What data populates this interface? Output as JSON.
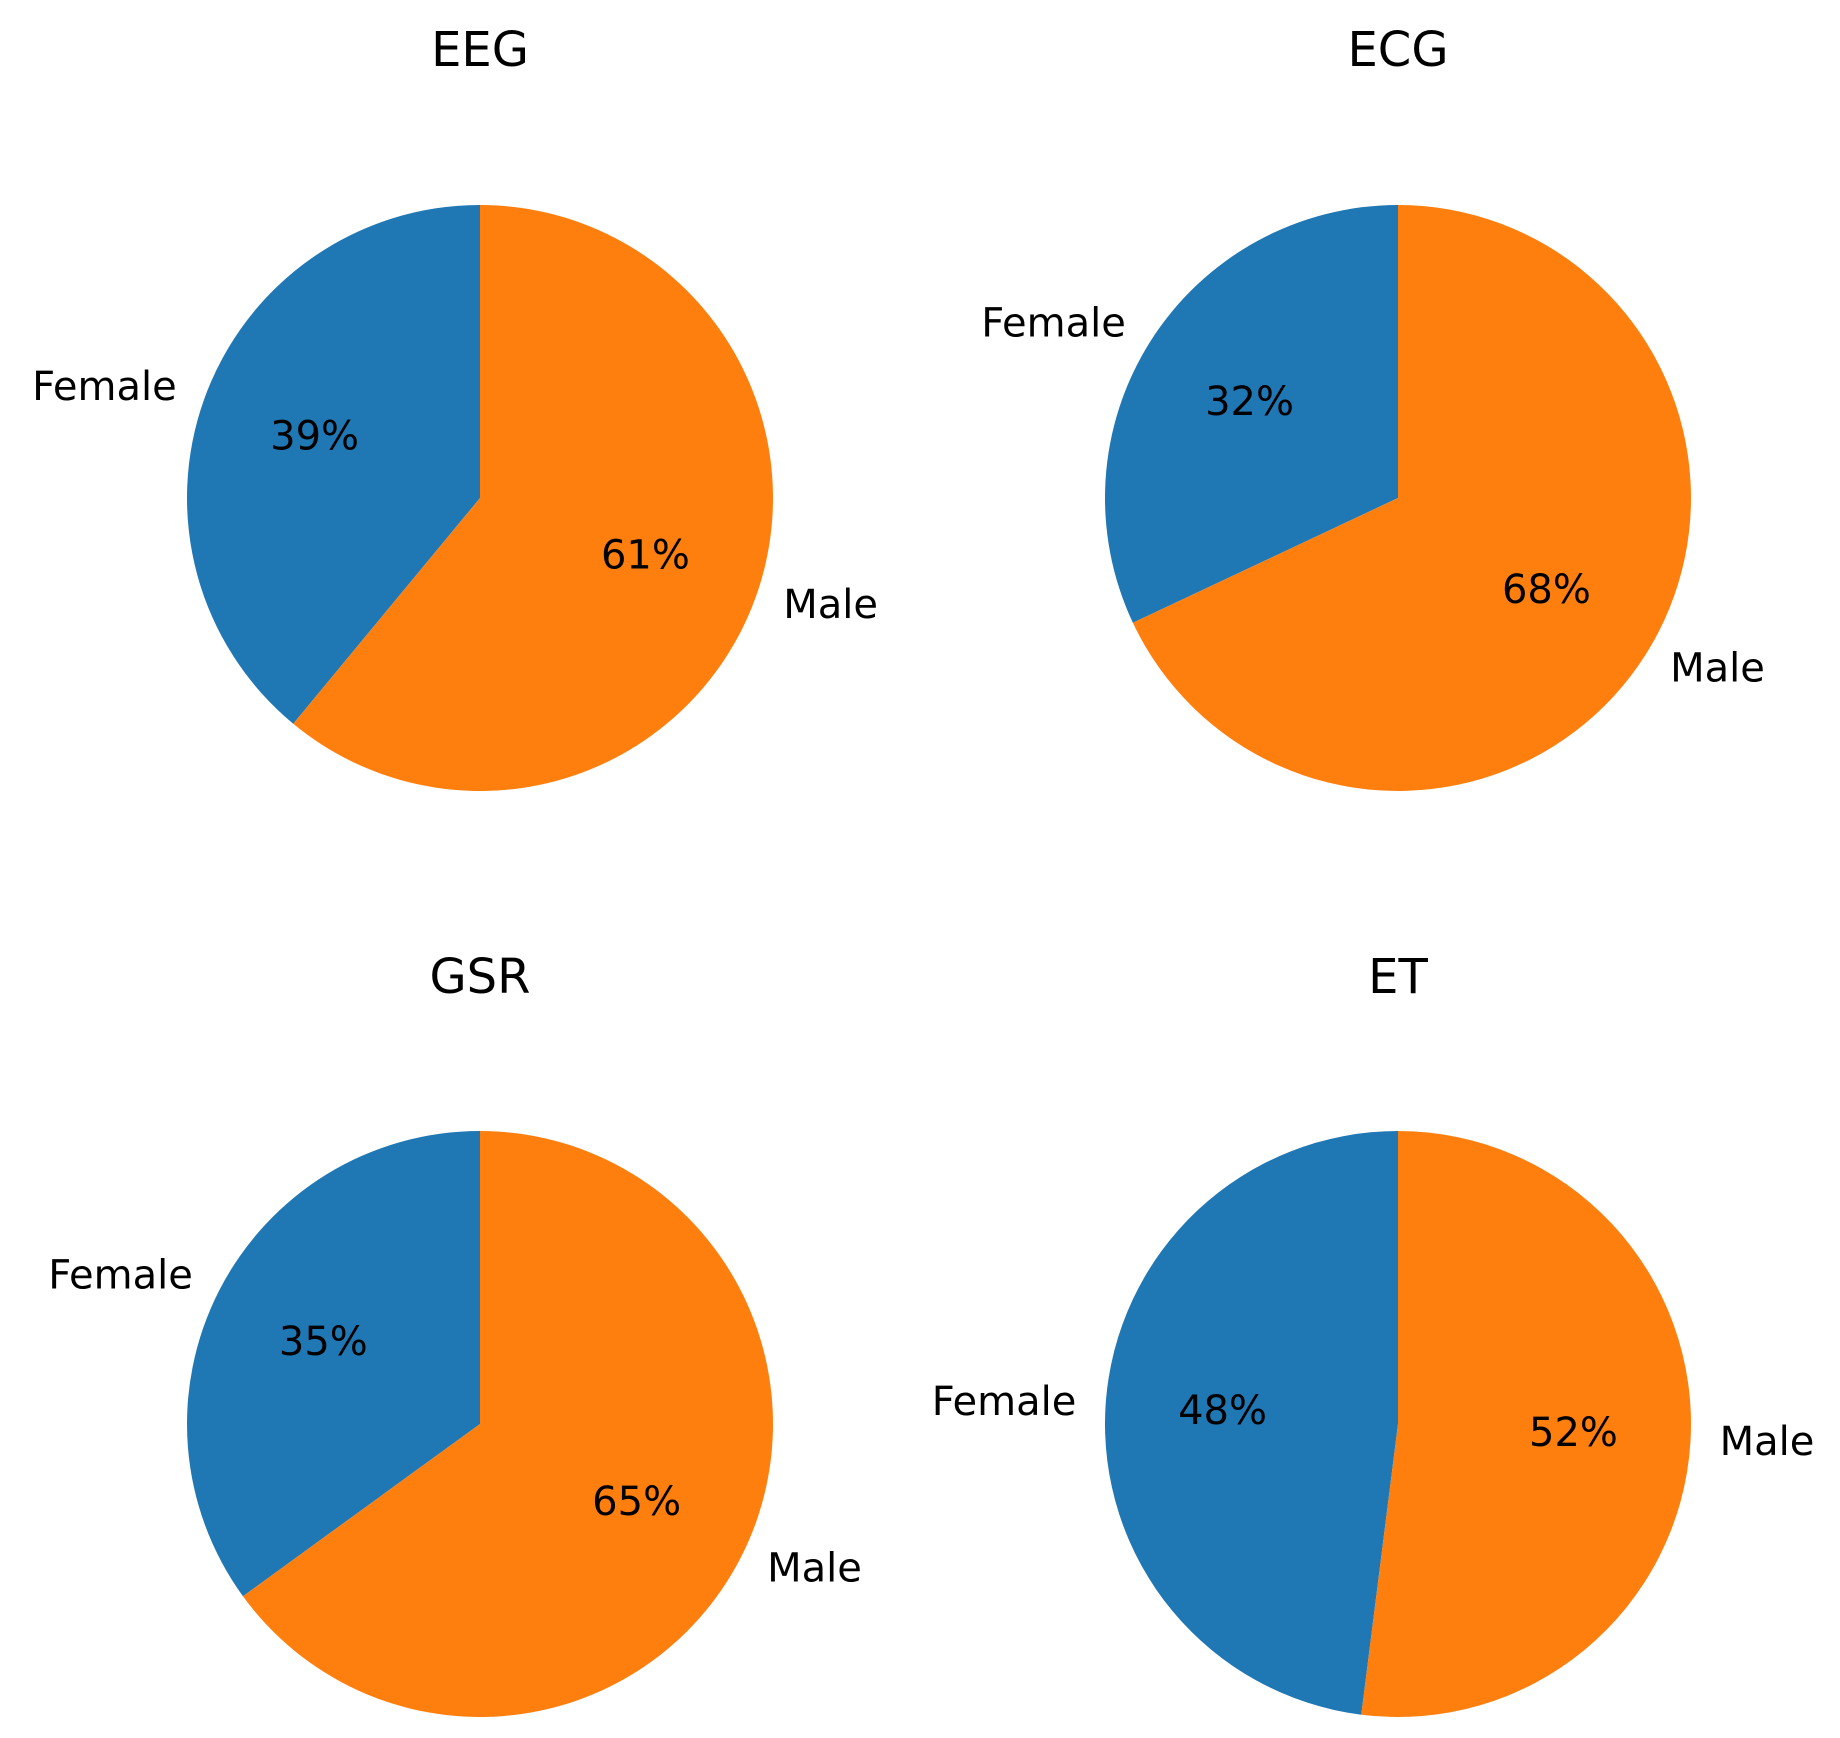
{
  "chart_data": [
    {
      "type": "pie",
      "title": "EEG",
      "categories": [
        "Female",
        "Male"
      ],
      "values": [
        39,
        61
      ],
      "value_labels": [
        "39%",
        "61%"
      ],
      "colors": [
        "#1f77b4",
        "#ff7f0e"
      ]
    },
    {
      "type": "pie",
      "title": "ECG",
      "categories": [
        "Female",
        "Male"
      ],
      "values": [
        32,
        68
      ],
      "value_labels": [
        "32%",
        "68%"
      ],
      "colors": [
        "#1f77b4",
        "#ff7f0e"
      ]
    },
    {
      "type": "pie",
      "title": "GSR",
      "categories": [
        "Female",
        "Male"
      ],
      "values": [
        35,
        65
      ],
      "value_labels": [
        "35%",
        "65%"
      ],
      "colors": [
        "#1f77b4",
        "#ff7f0e"
      ]
    },
    {
      "type": "pie",
      "title": "ET",
      "categories": [
        "Female",
        "Male"
      ],
      "values": [
        48,
        52
      ],
      "value_labels": [
        "48%",
        "52%"
      ],
      "colors": [
        "#1f77b4",
        "#ff7f0e"
      ]
    }
  ]
}
